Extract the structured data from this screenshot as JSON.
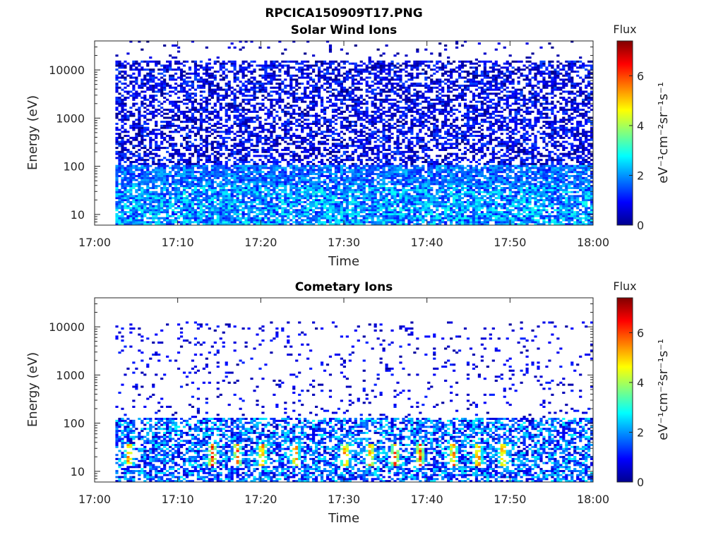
{
  "figure_title": "RPCICA150909T17.PNG",
  "chart_data": [
    {
      "type": "heatmap",
      "title": "Solar Wind Ions",
      "xlabel": "Time",
      "ylabel": "Energy (eV)",
      "x_ticks": [
        "17:00",
        "17:10",
        "17:20",
        "17:30",
        "17:40",
        "17:50",
        "18:00"
      ],
      "xlim": [
        "17:00",
        "18:00"
      ],
      "y_scale": "log",
      "y_ticks": [
        10,
        100,
        1000,
        10000
      ],
      "y_tick_labels": [
        "10",
        "100",
        "1000",
        "10000"
      ],
      "ylim": [
        6,
        40000
      ],
      "data_time_range": [
        "17:02:30",
        "18:00"
      ],
      "colorbar": {
        "title": "Flux",
        "label": "eV⁻¹cm⁻²sr⁻¹s⁻¹",
        "range": [
          0,
          7.4
        ],
        "ticks": [
          0,
          2,
          4,
          6
        ],
        "colormap": "jet"
      },
      "description_of_values": {
        "high_energy_band_eV": [
          100,
          15000
        ],
        "high_energy_typical_flux": [
          0,
          1.5
        ],
        "low_energy_band_eV": [
          6,
          100
        ],
        "low_energy_typical_flux": [
          1,
          3
        ]
      }
    },
    {
      "type": "heatmap",
      "title": "Cometary Ions",
      "xlabel": "Time",
      "ylabel": "Energy (eV)",
      "x_ticks": [
        "17:00",
        "17:10",
        "17:20",
        "17:30",
        "17:40",
        "17:50",
        "18:00"
      ],
      "xlim": [
        "17:00",
        "18:00"
      ],
      "y_scale": "log",
      "y_ticks": [
        10,
        100,
        1000,
        10000
      ],
      "y_tick_labels": [
        "10",
        "100",
        "1000",
        "10000"
      ],
      "ylim": [
        6,
        40000
      ],
      "data_time_range": [
        "17:02:30",
        "18:00"
      ],
      "colorbar": {
        "title": "Flux",
        "label": "eV⁻¹cm⁻²sr⁻¹s⁻¹",
        "range": [
          0,
          7.4
        ],
        "ticks": [
          0,
          2,
          4,
          6
        ],
        "colormap": "jet"
      },
      "description_of_values": {
        "sparse_band_eV": [
          100,
          12000
        ],
        "dense_band_eV": [
          6,
          120
        ],
        "peak_energy_eV": [
          12,
          35
        ],
        "peak_flux_max": 6.8,
        "peak_times": [
          "17:04",
          "17:14",
          "17:17",
          "17:20",
          "17:24",
          "17:30",
          "17:33",
          "17:36",
          "17:39",
          "17:43",
          "17:46",
          "17:49"
        ]
      }
    }
  ]
}
